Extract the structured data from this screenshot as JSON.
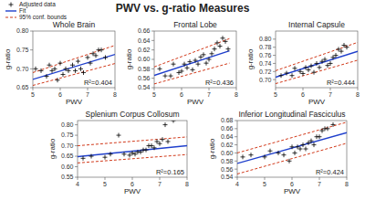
{
  "title": "PWV vs. g-ratio Measures",
  "chart_data": [
    {
      "type": "scatter",
      "title": "Whole Brain",
      "annotation": "R²=0.404",
      "xlabel": "PWV",
      "ylabel": "g-ratio",
      "xlim": [
        5,
        8
      ],
      "ylim": [
        0.65,
        0.8
      ],
      "xticks": [
        5,
        6,
        7,
        8
      ],
      "yticks": [
        0.65,
        {
          "value": 0.7,
          "label": "0.70"
        },
        0.75,
        {
          "value": 0.8,
          "label": "0.80"
        }
      ],
      "legend": "upper left",
      "series": [
        {
          "name": "Adjusted data",
          "type": "scatter",
          "marker": "plus",
          "color": "black",
          "x": [
            5.1,
            5.3,
            5.5,
            5.6,
            5.7,
            5.8,
            5.9,
            6.0,
            6.1,
            6.2,
            6.3,
            6.45,
            6.55,
            6.65,
            6.75,
            6.85,
            7.0,
            7.1,
            7.2,
            7.3,
            7.4,
            7.5,
            7.65
          ],
          "values": [
            0.7,
            0.695,
            0.68,
            0.71,
            0.695,
            0.7,
            0.67,
            0.715,
            0.685,
            0.7,
            0.695,
            0.71,
            0.695,
            0.72,
            0.7,
            0.69,
            0.73,
            0.715,
            0.74,
            0.735,
            0.75,
            0.75,
            0.73
          ]
        },
        {
          "name": "Fit",
          "type": "line",
          "color": "#1f3fcc",
          "x": [
            5.0,
            8.0
          ],
          "values": [
            0.672,
            0.738
          ]
        },
        {
          "name": "95% conf. bounds",
          "type": "line",
          "line_style": "dashed",
          "color": "#cc2200",
          "x": [
            5.0,
            8.0
          ],
          "values": [
            0.69,
            0.762
          ]
        },
        {
          "type": "line",
          "line_style": "dashed",
          "color": "#cc2200",
          "x": [
            5.0,
            8.0
          ],
          "values": [
            0.656,
            0.714
          ]
        }
      ]
    },
    {
      "type": "scatter",
      "title": "Frontal Lobe",
      "annotation": "R²=0.436",
      "xlabel": "PWV",
      "ylabel": "g-ratio",
      "xlim": [
        5,
        8
      ],
      "ylim": [
        0.54,
        0.66
      ],
      "xticks": [
        5,
        6,
        7,
        8
      ],
      "yticks": [
        0.54,
        0.56,
        0.58,
        {
          "value": 0.6,
          "label": "0.60"
        },
        0.62,
        0.64,
        0.66
      ],
      "series": [
        {
          "type": "scatter",
          "marker": "plus",
          "color": "black",
          "x": [
            5.2,
            5.4,
            5.6,
            5.7,
            5.9,
            6.0,
            6.1,
            6.2,
            6.3,
            6.4,
            6.5,
            6.6,
            6.7,
            6.8,
            6.9,
            7.0,
            7.1,
            7.2,
            7.3,
            7.4,
            7.5,
            7.6,
            7.7
          ],
          "values": [
            0.58,
            0.565,
            0.565,
            0.59,
            0.572,
            0.575,
            0.59,
            0.582,
            0.595,
            0.578,
            0.598,
            0.59,
            0.605,
            0.61,
            0.592,
            0.6,
            0.612,
            0.622,
            0.635,
            0.628,
            0.645,
            0.638,
            0.622
          ]
        },
        {
          "type": "line",
          "color": "#1f3fcc",
          "x": [
            5.0,
            7.75
          ],
          "values": [
            0.566,
            0.618
          ]
        },
        {
          "type": "line",
          "line_style": "dashed",
          "color": "#cc2200",
          "x": [
            5.0,
            7.75
          ],
          "values": [
            0.584,
            0.644
          ]
        },
        {
          "type": "line",
          "line_style": "dashed",
          "color": "#cc2200",
          "x": [
            5.0,
            7.75
          ],
          "values": [
            0.548,
            0.592
          ]
        }
      ]
    },
    {
      "type": "scatter",
      "title": "Internal Capsule",
      "annotation": "R²=0.444",
      "xlabel": "PWV",
      "ylabel": "g-ratio",
      "xlim": [
        5,
        8
      ],
      "ylim": [
        0.68,
        0.82
      ],
      "xticks": [
        5,
        6,
        7,
        8
      ],
      "yticks": [
        {
          "value": 0.7,
          "label": "0.70"
        },
        0.72,
        0.74,
        0.76,
        0.78,
        {
          "value": 0.8,
          "label": "0.80"
        }
      ],
      "series": [
        {
          "type": "scatter",
          "marker": "plus",
          "color": "black",
          "x": [
            5.2,
            5.4,
            5.6,
            5.7,
            5.9,
            6.0,
            6.1,
            6.2,
            6.3,
            6.4,
            6.5,
            6.6,
            6.7,
            6.8,
            6.9,
            7.0,
            7.1,
            7.2,
            7.3,
            7.4,
            7.5,
            7.6
          ],
          "values": [
            0.71,
            0.716,
            0.71,
            0.728,
            0.72,
            0.715,
            0.73,
            0.724,
            0.734,
            0.718,
            0.74,
            0.73,
            0.745,
            0.75,
            0.735,
            0.74,
            0.755,
            0.76,
            0.775,
            0.77,
            0.785,
            0.78
          ]
        },
        {
          "type": "line",
          "color": "#1f3fcc",
          "x": [
            5.0,
            8.0
          ],
          "values": [
            0.706,
            0.77
          ]
        },
        {
          "type": "line",
          "line_style": "dashed",
          "color": "#cc2200",
          "x": [
            5.0,
            8.0
          ],
          "values": [
            0.722,
            0.792
          ]
        },
        {
          "type": "line",
          "line_style": "dashed",
          "color": "#cc2200",
          "x": [
            5.0,
            8.0
          ],
          "values": [
            0.69,
            0.748
          ]
        }
      ]
    },
    {
      "type": "scatter",
      "title": "Splenium Corpus Collosum",
      "annotation": "R²=0.165",
      "xlabel": "PWV",
      "ylabel": "g-ratio",
      "xlim": [
        4,
        8
      ],
      "ylim": [
        0.55,
        0.82
      ],
      "xticks": [
        4,
        5,
        6,
        7,
        8
      ],
      "yticks": [
        0.55,
        {
          "value": 0.6,
          "label": "0.60"
        },
        0.65,
        {
          "value": 0.7,
          "label": "0.70"
        },
        0.75,
        {
          "value": 0.8,
          "label": "0.80"
        }
      ],
      "series": [
        {
          "type": "scatter",
          "marker": "plus",
          "color": "black",
          "x": [
            4.2,
            4.5,
            5.0,
            5.2,
            5.5,
            5.7,
            5.9,
            6.0,
            6.1,
            6.2,
            6.3,
            6.4,
            6.5,
            6.6,
            6.7,
            6.8,
            6.9,
            7.0,
            7.1,
            7.2,
            7.3,
            7.5
          ],
          "values": [
            0.64,
            0.65,
            0.645,
            0.66,
            0.75,
            0.66,
            0.655,
            0.665,
            0.66,
            0.67,
            0.67,
            0.68,
            0.68,
            0.7,
            0.7,
            0.69,
            0.72,
            0.71,
            0.73,
            0.8,
            0.72,
            0.82
          ]
        },
        {
          "type": "line",
          "color": "#1f3fcc",
          "x": [
            4.0,
            8.0
          ],
          "values": [
            0.648,
            0.7
          ]
        },
        {
          "type": "line",
          "line_style": "dashed",
          "color": "#cc2200",
          "x": [
            4.0,
            8.0
          ],
          "values": [
            0.7,
            0.742
          ]
        },
        {
          "type": "line",
          "line_style": "dashed",
          "color": "#cc2200",
          "x": [
            4.0,
            8.0
          ],
          "values": [
            0.618,
            0.658
          ]
        }
      ]
    },
    {
      "type": "scatter",
      "title": "Inferior Longitudinal Fasciculus",
      "annotation": "R²=0.424",
      "xlabel": "PWV",
      "ylabel": "g-ratio",
      "xlim": [
        4,
        8
      ],
      "ylim": [
        0.54,
        0.68
      ],
      "xticks": [
        4,
        5,
        6,
        7,
        8
      ],
      "yticks": [
        0.54,
        0.56,
        0.58,
        {
          "value": 0.6,
          "label": "0.60"
        },
        0.62,
        0.64,
        0.66,
        0.68
      ],
      "series": [
        {
          "type": "scatter",
          "marker": "plus",
          "color": "black",
          "x": [
            4.2,
            4.5,
            5.0,
            5.2,
            5.5,
            5.7,
            5.9,
            6.0,
            6.1,
            6.2,
            6.3,
            6.4,
            6.5,
            6.6,
            6.7,
            6.8,
            6.9,
            7.0,
            7.1,
            7.2,
            7.3,
            7.5
          ],
          "values": [
            0.59,
            0.595,
            0.59,
            0.605,
            0.6,
            0.595,
            0.58,
            0.615,
            0.6,
            0.615,
            0.61,
            0.62,
            0.61,
            0.625,
            0.63,
            0.62,
            0.64,
            0.64,
            0.655,
            0.66,
            0.66,
            0.67
          ]
        },
        {
          "type": "line",
          "color": "#1f3fcc",
          "x": [
            4.0,
            8.0
          ],
          "values": [
            0.574,
            0.65
          ]
        },
        {
          "type": "line",
          "line_style": "dashed",
          "color": "#cc2200",
          "x": [
            4.0,
            8.0
          ],
          "values": [
            0.6,
            0.676
          ]
        },
        {
          "type": "line",
          "line_style": "dashed",
          "color": "#cc2200",
          "x": [
            4.0,
            8.0
          ],
          "values": [
            0.548,
            0.624
          ]
        }
      ]
    }
  ]
}
